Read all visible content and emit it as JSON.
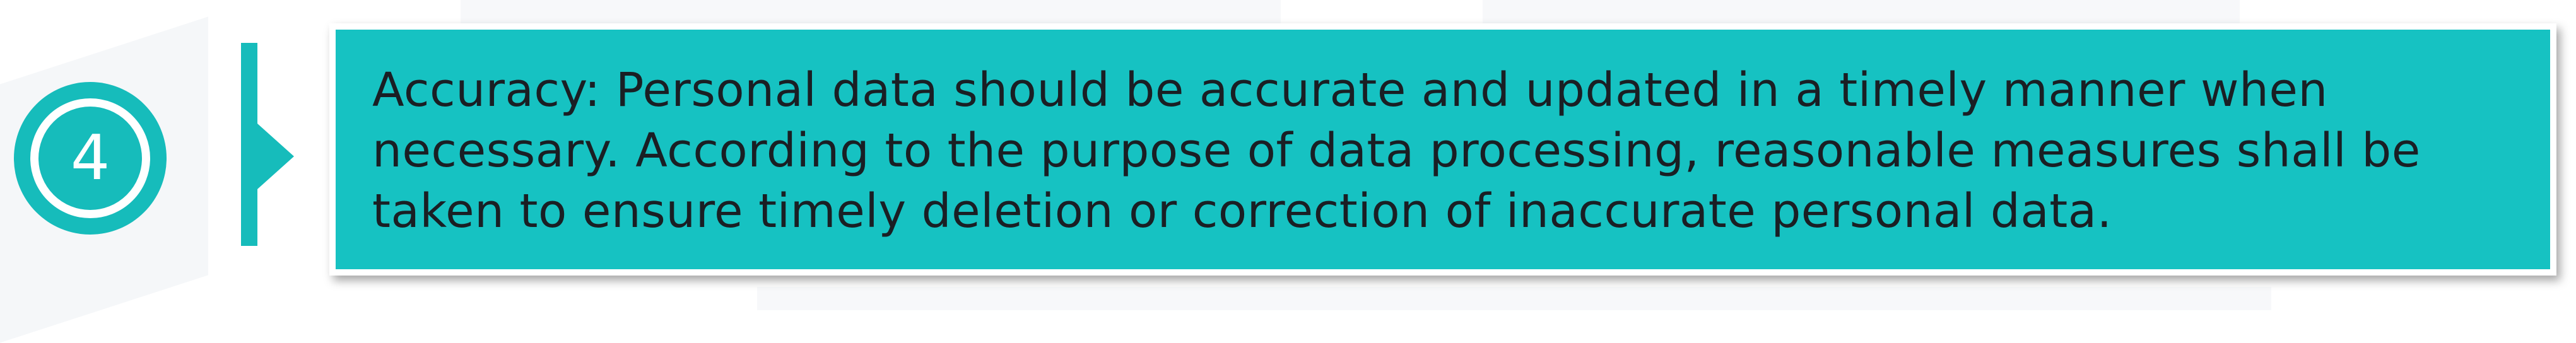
{
  "step": {
    "number": "4"
  },
  "principle": {
    "title": "Accuracy",
    "description": ": Personal data should be accurate and updated in a timely manner when necessary. According to the purpose of data processing, reasonable measures shall be taken to ensure timely deletion or correction of inaccurate personal data."
  },
  "colors": {
    "accent": "#16bcbb",
    "card": "#16c2c2",
    "text": "#1a1f24"
  }
}
